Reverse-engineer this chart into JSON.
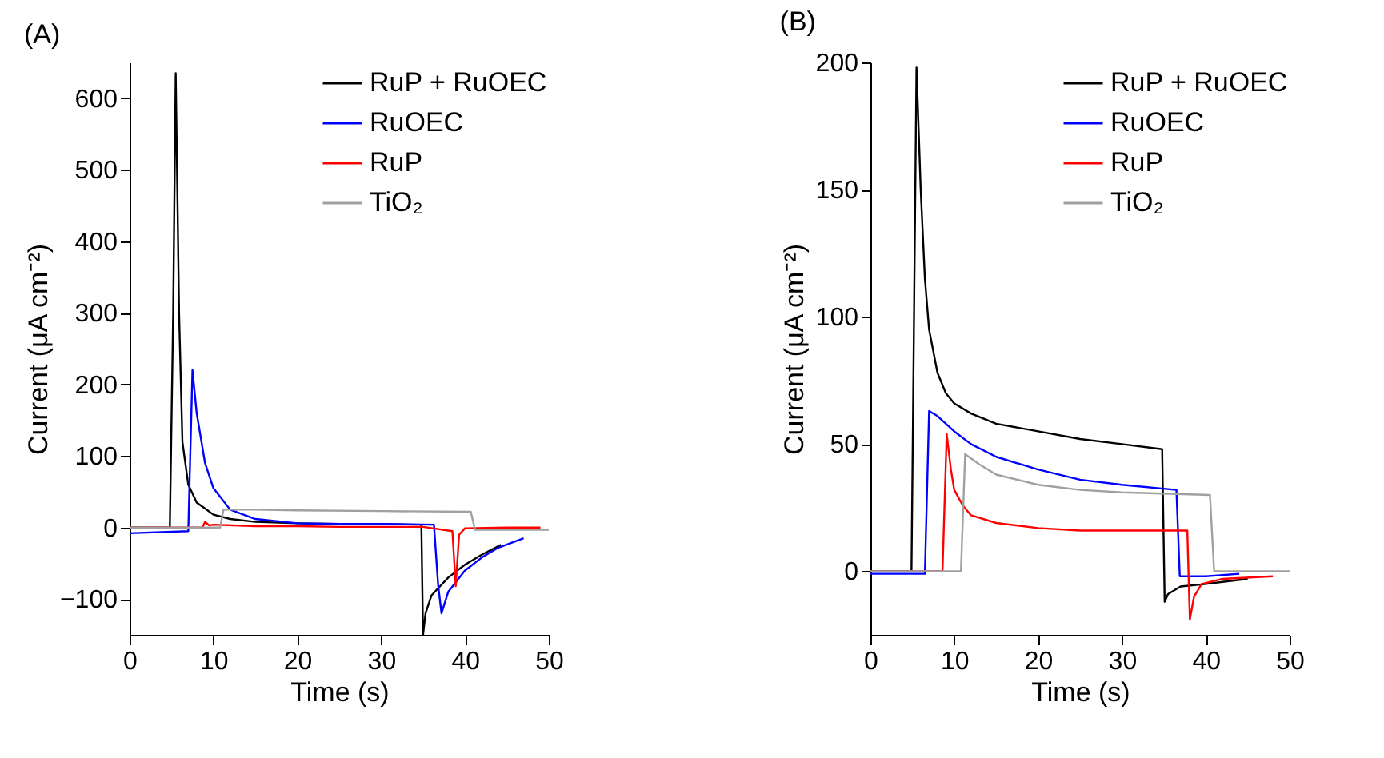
{
  "chart_data": [
    {
      "type": "line",
      "title": "(A)",
      "xlabel": "Time (s)",
      "ylabel": "Current (μA cm⁻²)",
      "xlim": [
        0,
        50
      ],
      "xticks": [
        0,
        10,
        20,
        30,
        40,
        50
      ],
      "ylim": [
        -150,
        650
      ],
      "yticks": [
        -100,
        0,
        100,
        200,
        300,
        400,
        500,
        600
      ],
      "grid": false,
      "legend": "top right",
      "line_style": "solid",
      "series": [
        {
          "name": "RuP + RuOEC",
          "color": "#000000",
          "x": [
            0,
            4.8,
            5.2,
            5.5,
            5.9,
            6.3,
            7,
            8,
            10,
            12,
            15,
            20,
            25,
            30,
            34.8,
            35,
            35.3,
            36,
            38,
            40,
            42,
            44.3
          ],
          "values": [
            0,
            0,
            300,
            635,
            300,
            120,
            60,
            35,
            18,
            12,
            8,
            6,
            5,
            5,
            4,
            -150,
            -120,
            -95,
            -70,
            -52,
            -38,
            -24
          ]
        },
        {
          "name": "RuOEC",
          "color": "#0000ff",
          "x": [
            0,
            7,
            7.5,
            8,
            9,
            10,
            12,
            15,
            20,
            25,
            30,
            36.3,
            36.8,
            37.2,
            38,
            40,
            42,
            44,
            47
          ],
          "values": [
            -8,
            -5,
            220,
            160,
            90,
            55,
            25,
            12,
            6,
            5,
            5,
            4,
            -80,
            -120,
            -90,
            -60,
            -42,
            -28,
            -15
          ]
        },
        {
          "name": "RuP",
          "color": "#ff0000",
          "x": [
            0,
            8.7,
            9,
            9.5,
            10,
            15,
            20,
            25,
            30,
            35,
            38.5,
            38.9,
            39.3,
            40,
            45,
            49
          ],
          "values": [
            0,
            0,
            8,
            3,
            4,
            2,
            2,
            1,
            1,
            1,
            -5,
            -82,
            -10,
            -1,
            0,
            0
          ]
        },
        {
          "name": "TiO₂",
          "color": "#a0a0a0",
          "x": [
            0,
            10.8,
            11.2,
            15,
            20,
            30,
            40.7,
            41.2,
            45,
            50
          ],
          "values": [
            0,
            0,
            25,
            25,
            24,
            23,
            22,
            -3,
            -3,
            -3
          ]
        }
      ]
    },
    {
      "type": "line",
      "title": "(B)",
      "xlabel": "Time (s)",
      "ylabel": "Current (μA cm⁻²)",
      "xlim": [
        0,
        50
      ],
      "xticks": [
        0,
        10,
        20,
        30,
        40,
        50
      ],
      "ylim": [
        -25,
        200
      ],
      "yticks": [
        0,
        50,
        100,
        150,
        200
      ],
      "grid": false,
      "legend": "top right",
      "line_style": "solid",
      "series": [
        {
          "name": "RuP + RuOEC",
          "color": "#000000",
          "x": [
            0,
            4.9,
            5.5,
            6,
            6.5,
            7,
            8,
            9,
            10,
            12,
            15,
            20,
            25,
            30,
            34.8,
            35.1,
            35.5,
            37,
            40,
            45
          ],
          "values": [
            0,
            0,
            198,
            150,
            115,
            95,
            78,
            70,
            66,
            62,
            58,
            55,
            52,
            50,
            48,
            -12,
            -9,
            -6,
            -5,
            -3
          ]
        },
        {
          "name": "RuOEC",
          "color": "#0000ff",
          "x": [
            0,
            6.5,
            7,
            8,
            10,
            12,
            15,
            20,
            25,
            30,
            36.5,
            36.9,
            40,
            44
          ],
          "values": [
            -1,
            -1,
            63,
            61,
            55,
            50,
            45,
            40,
            36,
            34,
            32,
            -2,
            -2,
            -1
          ]
        },
        {
          "name": "RuP",
          "color": "#ff0000",
          "x": [
            0,
            8.6,
            9.1,
            9.6,
            10,
            11,
            12,
            15,
            20,
            25,
            30,
            37.8,
            38.1,
            38.6,
            39.5,
            42,
            48
          ],
          "values": [
            0,
            0,
            54,
            40,
            32,
            26,
            22,
            19,
            17,
            16,
            16,
            16,
            -19,
            -10,
            -5,
            -3,
            -2
          ]
        },
        {
          "name": "TiO₂",
          "color": "#a0a0a0",
          "x": [
            0,
            10.8,
            11.3,
            13,
            15,
            20,
            25,
            30,
            40.5,
            41,
            50
          ],
          "values": [
            0,
            0,
            46,
            42,
            38,
            34,
            32,
            31,
            30,
            0,
            0
          ]
        }
      ]
    }
  ]
}
